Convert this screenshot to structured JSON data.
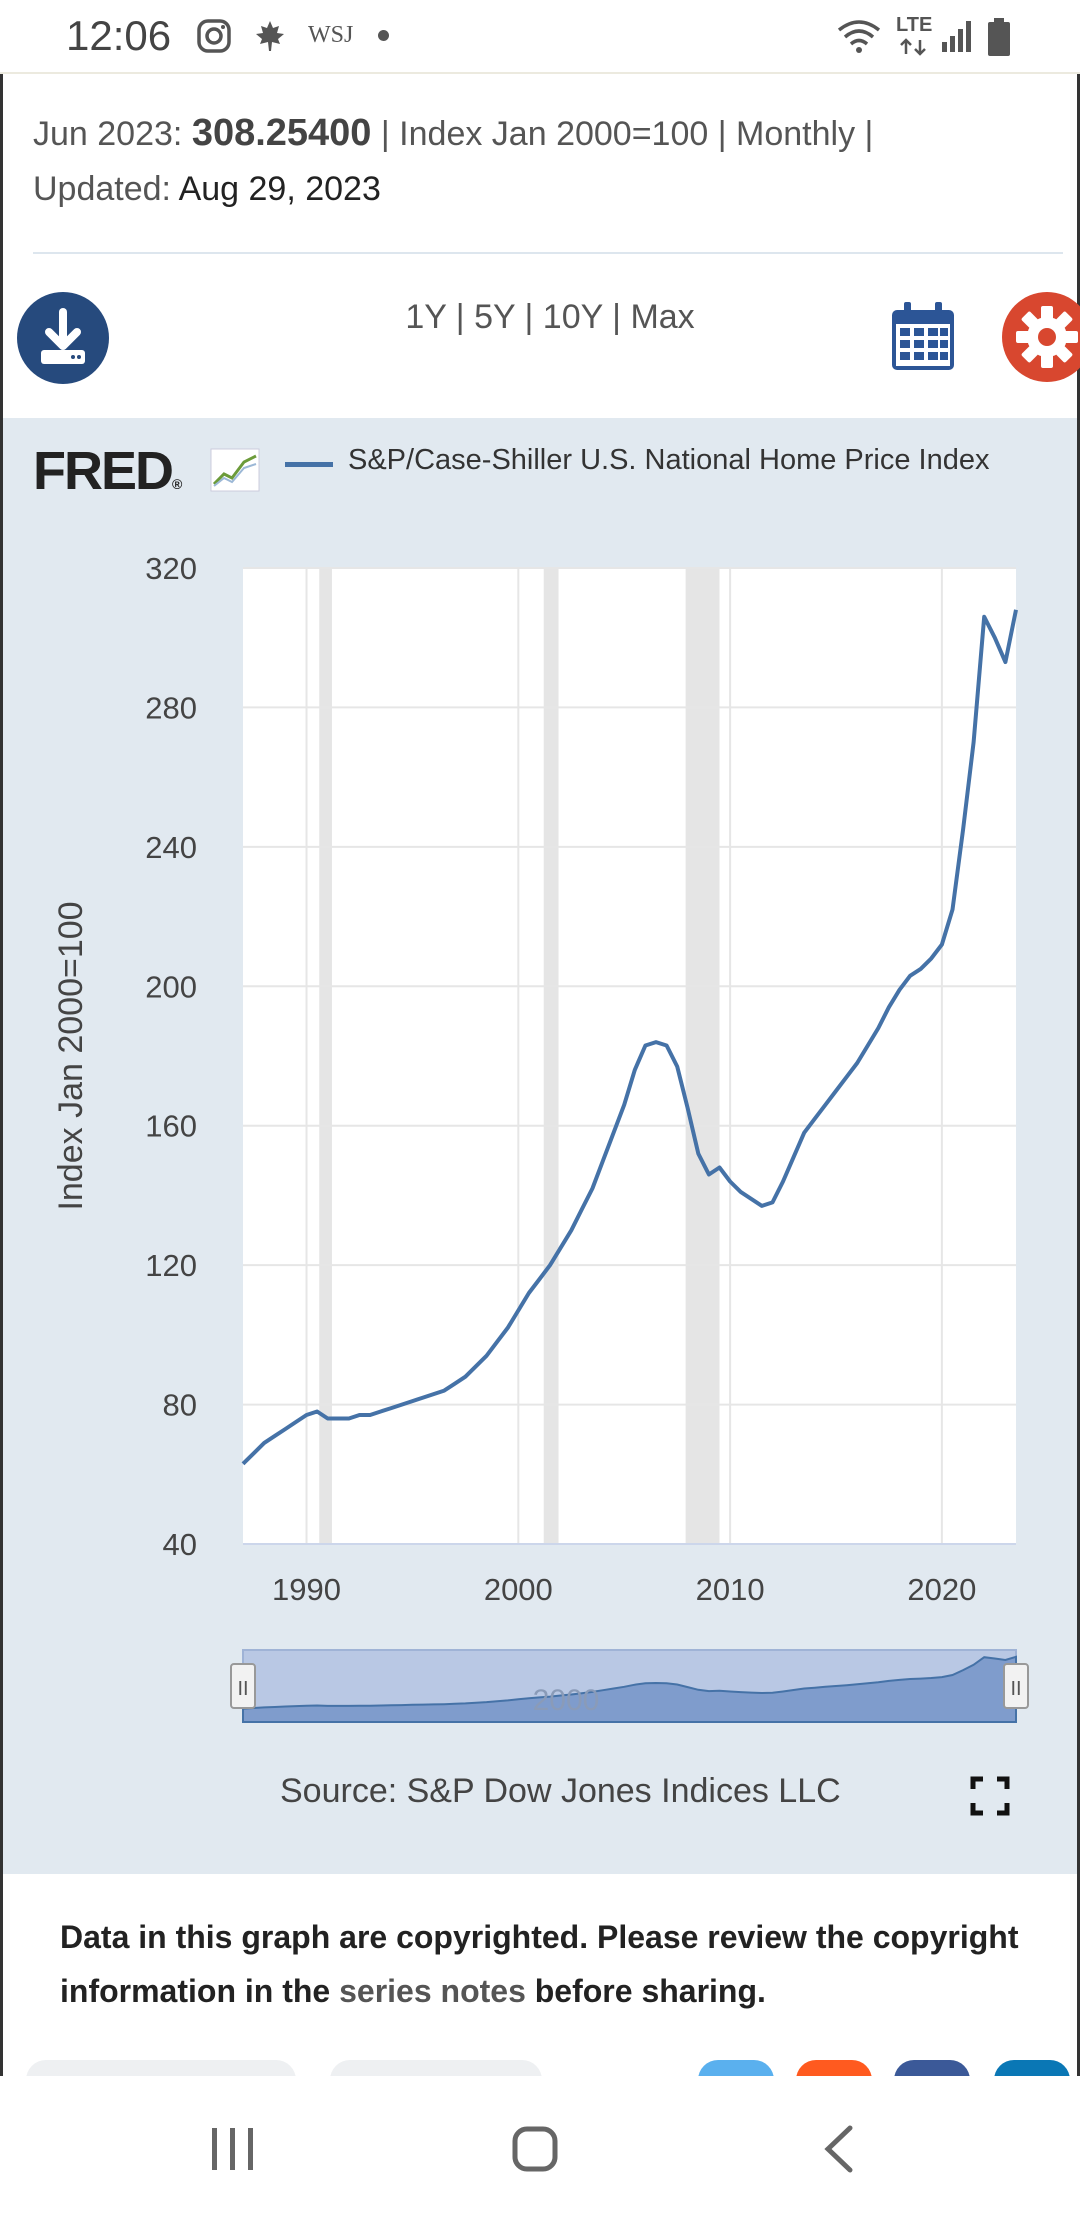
{
  "status_bar": {
    "time": "12:06",
    "app_icons": [
      "instagram-icon",
      "maple-leaf-icon"
    ],
    "wsj_label": "WSJ",
    "network_label": "LTE"
  },
  "series_info": {
    "date": "Jun 2023:",
    "value": "308.25400",
    "details": "| Index Jan 2000=100 | Monthly |",
    "updated_label": "Updated:",
    "updated_date": "Aug 29, 2023"
  },
  "toolbar": {
    "range_1y": "1Y",
    "range_5y": "5Y",
    "range_10y": "10Y",
    "range_max": "Max",
    "separator": "|",
    "download_icon": "download-icon",
    "calendar_icon": "calendar-icon",
    "settings_icon": "gear-icon"
  },
  "chart_header": {
    "logo_text": "FRED",
    "logo_mark": "®",
    "legend_label": "S&P/Case-Shiller U.S. National Home Price Index",
    "series_color": "#4572a7"
  },
  "chart_data": {
    "type": "line",
    "title": "",
    "xlabel": "",
    "ylabel": "Index Jan 2000=100",
    "xlim": [
      1987.0,
      2023.5
    ],
    "ylim": [
      40,
      320
    ],
    "x_ticks": [
      1990,
      2000,
      2010,
      2020
    ],
    "y_ticks": [
      40,
      80,
      120,
      160,
      200,
      240,
      280,
      320
    ],
    "grid": true,
    "legend": "top",
    "recessions": [
      [
        1990.6,
        1991.2
      ],
      [
        2001.2,
        2001.9
      ],
      [
        2007.9,
        2009.5
      ]
    ],
    "series": [
      {
        "name": "S&P/Case-Shiller U.S. National Home Price Index",
        "color": "#4572a7",
        "x": [
          1987.0,
          1987.5,
          1988.0,
          1988.5,
          1989.0,
          1989.5,
          1990.0,
          1990.5,
          1991.0,
          1991.5,
          1992.0,
          1992.5,
          1993.0,
          1993.5,
          1994.0,
          1994.5,
          1995.0,
          1995.5,
          1996.0,
          1996.5,
          1997.0,
          1997.5,
          1998.0,
          1998.5,
          1999.0,
          1999.5,
          2000.0,
          2000.5,
          2001.0,
          2001.5,
          2002.0,
          2002.5,
          2003.0,
          2003.5,
          2004.0,
          2004.5,
          2005.0,
          2005.5,
          2006.0,
          2006.5,
          2007.0,
          2007.5,
          2008.0,
          2008.5,
          2009.0,
          2009.5,
          2010.0,
          2010.5,
          2011.0,
          2011.5,
          2012.0,
          2012.5,
          2013.0,
          2013.5,
          2014.0,
          2014.5,
          2015.0,
          2015.5,
          2016.0,
          2016.5,
          2017.0,
          2017.5,
          2018.0,
          2018.5,
          2019.0,
          2019.5,
          2020.0,
          2020.5,
          2021.0,
          2021.5,
          2022.0,
          2022.5,
          2023.0,
          2023.5
        ],
        "values": [
          63,
          66,
          69,
          71,
          73,
          75,
          77,
          78,
          76,
          76,
          76,
          77,
          77,
          78,
          79,
          80,
          81,
          82,
          83,
          84,
          86,
          88,
          91,
          94,
          98,
          102,
          107,
          112,
          116,
          120,
          125,
          130,
          136,
          142,
          150,
          158,
          166,
          176,
          183,
          184,
          183,
          177,
          165,
          152,
          146,
          148,
          144,
          141,
          139,
          137,
          138,
          144,
          151,
          158,
          162,
          166,
          170,
          174,
          178,
          183,
          188,
          194,
          199,
          203,
          205,
          208,
          212,
          222,
          245,
          270,
          306,
          300,
          293,
          308
        ]
      }
    ]
  },
  "navigator": {
    "label": "2000",
    "handle_glyph": "II"
  },
  "footer": {
    "source": "Source: S&P Dow Jones Indices LLC",
    "copyright_pre": "Data in this graph are copyrighted. Please review the copyright information in the",
    "copyright_link": "series notes",
    "copyright_post": "before sharing."
  }
}
